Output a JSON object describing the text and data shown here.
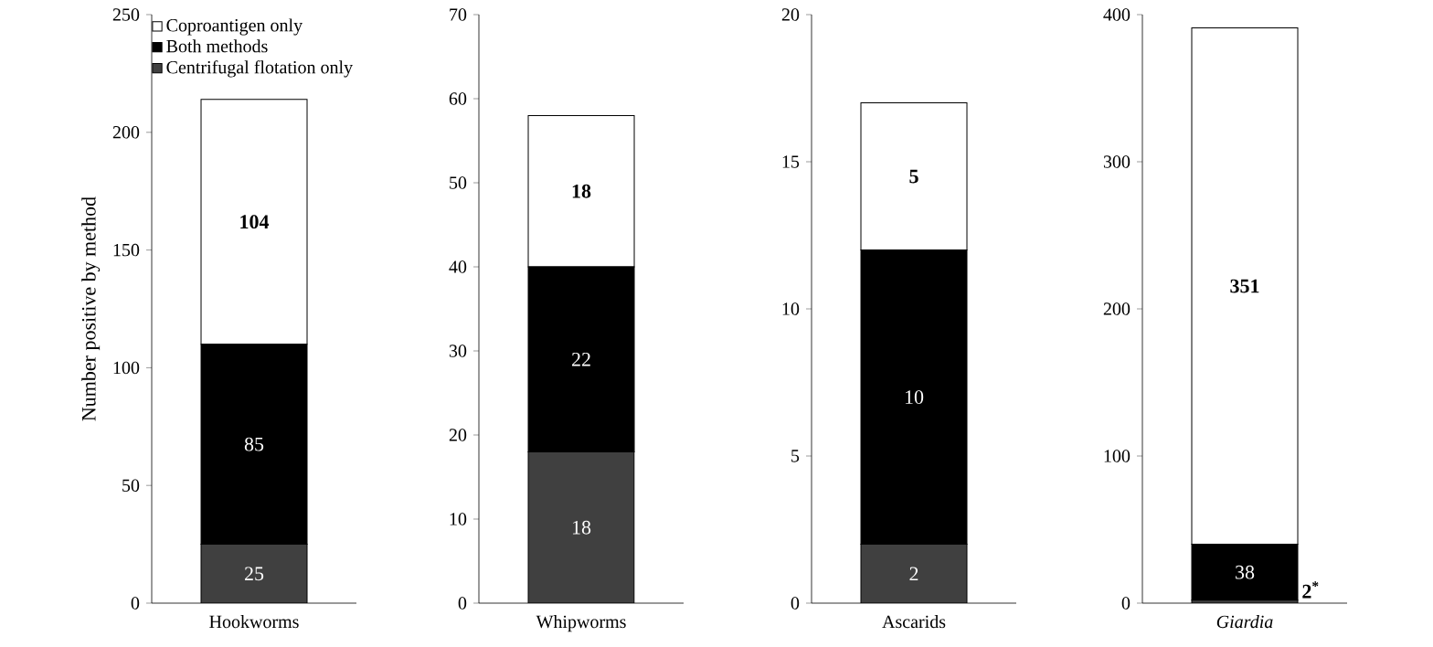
{
  "chart_data": [
    {
      "type": "bar",
      "stacked": true,
      "categories": [
        "Hookworms"
      ],
      "ylabel": "Number positive by method",
      "ylim": [
        0,
        250
      ],
      "yticks": [
        0,
        50,
        100,
        150,
        200,
        250
      ],
      "legend": "top left",
      "series": [
        {
          "name": "Centrifugal flotation only",
          "color": "#404040",
          "values": [
            25
          ],
          "value_labels": [
            "25"
          ]
        },
        {
          "name": "Both methods",
          "color": "#000000",
          "values": [
            85
          ],
          "value_labels": [
            "85"
          ]
        },
        {
          "name": "Coproantigen only",
          "color": "#ffffff",
          "values": [
            104
          ],
          "value_labels": [
            "104"
          ]
        }
      ]
    },
    {
      "type": "bar",
      "stacked": true,
      "categories": [
        "Whipworms"
      ],
      "ylim": [
        0,
        70
      ],
      "yticks": [
        0,
        10,
        20,
        30,
        40,
        50,
        60,
        70
      ],
      "series": [
        {
          "color": "#404040",
          "values": [
            18
          ],
          "value_labels": [
            "18"
          ]
        },
        {
          "color": "#000000",
          "values": [
            22
          ],
          "value_labels": [
            "22"
          ]
        },
        {
          "color": "#ffffff",
          "values": [
            18
          ],
          "value_labels": [
            "18"
          ]
        }
      ]
    },
    {
      "type": "bar",
      "stacked": true,
      "categories": [
        "Ascarids"
      ],
      "ylim": [
        0,
        20
      ],
      "yticks": [
        0,
        5,
        10,
        15,
        20
      ],
      "series": [
        {
          "color": "#404040",
          "values": [
            2
          ],
          "value_labels": [
            "2"
          ]
        },
        {
          "color": "#000000",
          "values": [
            10
          ],
          "value_labels": [
            "10"
          ]
        },
        {
          "color": "#ffffff",
          "values": [
            5
          ],
          "value_labels": [
            "5"
          ]
        }
      ]
    },
    {
      "type": "bar",
      "stacked": true,
      "categories": [
        "*Giardia*"
      ],
      "ylim": [
        0,
        400
      ],
      "yticks": [
        0,
        100,
        200,
        300,
        400
      ],
      "series": [
        {
          "color": "#404040",
          "values": [
            2
          ],
          "value_labels": [
            "2$^{*}$"
          ]
        },
        {
          "color": "#000000",
          "values": [
            38
          ],
          "value_labels": [
            "38"
          ]
        },
        {
          "color": "#ffffff",
          "values": [
            351
          ],
          "value_labels": [
            "351"
          ]
        }
      ]
    }
  ]
}
